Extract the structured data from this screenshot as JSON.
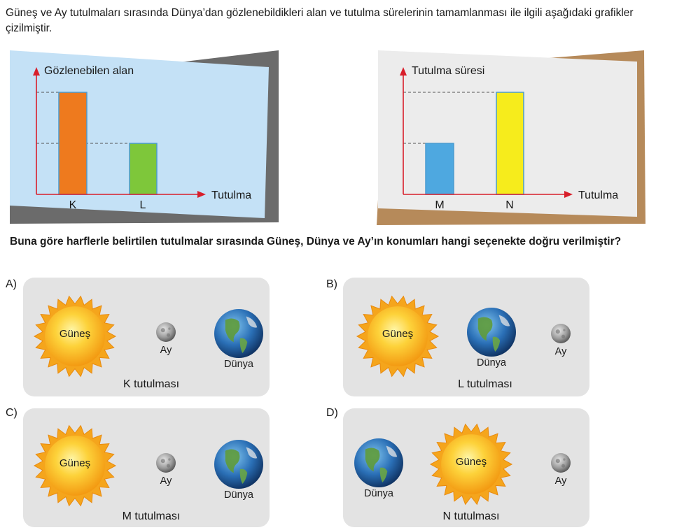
{
  "intro_text": "Güneş ve Ay tutulmaları sırasında Dünya’dan gözlenebildikleri alan ve tutulma sürelerinin tamamlanması ile ilgili aşağıdaki grafikler çizilmiştir.",
  "question_text": "Buna göre harflerle belirtilen tutulmalar sırasında Güneş, Dünya ve Ay’ın konumları hangi seçenekte doğru verilmiştir?",
  "colors": {
    "chart1_back": "#6b6b6b",
    "chart1_front": "#c4e1f6",
    "chart2_back": "#b68a5a",
    "chart2_front": "#ececec",
    "axis": "#d81e2a",
    "bar_K": "#ee7a1e",
    "bar_L": "#7ec73a",
    "bar_M": "#4ea8e0",
    "bar_N": "#f6ec1c",
    "panel": "#e3e3e3"
  },
  "chart_data": [
    {
      "type": "bar",
      "ylabel": "Gözlenebilen alan",
      "xlabel": "Tutulma",
      "categories": [
        "K",
        "L"
      ],
      "values": [
        2,
        1
      ],
      "ylim": [
        0,
        2
      ]
    },
    {
      "type": "bar",
      "ylabel": "Tutulma süresi",
      "xlabel": "Tutulma",
      "categories": [
        "M",
        "N"
      ],
      "values": [
        1,
        2
      ],
      "ylim": [
        0,
        2
      ]
    }
  ],
  "options": [
    {
      "letter": "A)",
      "sun": "Güneş",
      "moon": "Ay",
      "earth": "Dünya",
      "caption": "K tutulması"
    },
    {
      "letter": "B)",
      "sun": "Güneş",
      "earth": "Dünya",
      "moon": "Ay",
      "caption": "L tutulması"
    },
    {
      "letter": "C)",
      "sun": "Güneş",
      "moon": "Ay",
      "earth": "Dünya",
      "caption": "M tutulması"
    },
    {
      "letter": "D)",
      "earth": "Dünya",
      "sun": "Güneş",
      "moon": "Ay",
      "caption": "N tutulması"
    }
  ]
}
